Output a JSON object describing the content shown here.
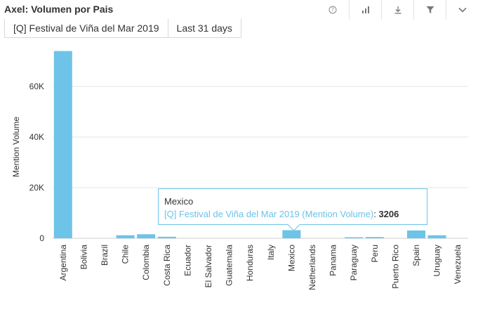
{
  "header": {
    "title": "Axel: Volumen por Pais"
  },
  "toolbar": [
    {
      "icon": "help-icon"
    },
    {
      "icon": "bar-chart-icon"
    },
    {
      "icon": "download-icon"
    },
    {
      "icon": "filter-icon"
    },
    {
      "icon": "chevron-down-icon"
    }
  ],
  "filters": {
    "query": "[Q] Festival de Viña del Mar 2019",
    "period": "Last 31 days"
  },
  "colors": {
    "bar": "#6dc3e8",
    "grid": "#e6e6e6",
    "text": "#333333"
  },
  "tooltip": {
    "category": "Mexico",
    "series": "[Q] Festival de Viña del Mar 2019 (Mention Volume)",
    "separator": ":",
    "value": "3206"
  },
  "chart_data": {
    "type": "bar",
    "title": "",
    "xlabel": "",
    "ylabel": "Mention Volume",
    "ylim": [
      0,
      75000
    ],
    "yticks": [
      0,
      20000,
      40000,
      60000
    ],
    "ytick_labels": [
      "0",
      "20K",
      "40K",
      "60K"
    ],
    "grid": true,
    "categories": [
      "Argentina",
      "Bolivia",
      "Brazil",
      "Chile",
      "Colombia",
      "Costa Rica",
      "Ecuador",
      "El Salvador",
      "Guatemala",
      "Honduras",
      "Italy",
      "Mexico",
      "Netherlands",
      "Panama",
      "Paraguay",
      "Peru",
      "Puerto Rico",
      "Spain",
      "Uruguay",
      "Venezuela"
    ],
    "series": [
      {
        "name": "[Q] Festival de Viña del Mar 2019 (Mention Volume)",
        "values": [
          74000,
          0,
          0,
          1200,
          1600,
          600,
          0,
          0,
          0,
          0,
          0,
          3206,
          0,
          0,
          400,
          500,
          0,
          3100,
          1200,
          0
        ]
      }
    ]
  }
}
